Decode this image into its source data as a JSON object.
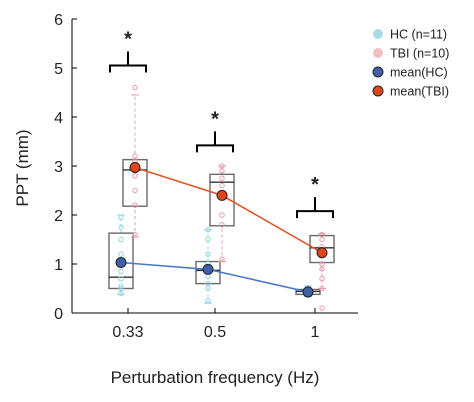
{
  "chart_data": {
    "type": "box",
    "title": "",
    "xlabel": "Perturbation frequency (Hz)",
    "ylabel": "PPT (mm)",
    "ylim": [
      0,
      6
    ],
    "yticks": [
      "0",
      "1",
      "2",
      "3",
      "4",
      "5",
      "6"
    ],
    "categories": [
      "0.33",
      "0.5",
      "1"
    ],
    "legend_position": "top-right",
    "legend": [
      {
        "label": "HC (n=11)",
        "marker": "scatter",
        "color": "#a8dde8"
      },
      {
        "label": "TBI (n=10)",
        "marker": "scatter",
        "color": "#f4c0c0"
      },
      {
        "label": "mean(HC)",
        "marker": "mean",
        "color": "#3f5fa8"
      },
      {
        "label": "mean(TBI)",
        "marker": "mean",
        "color": "#e0451b"
      }
    ],
    "series": [
      {
        "name": "HC",
        "line_color": "#4a7ac8",
        "mean_color": "#3f5fa8",
        "point_color": "#8fd6e4",
        "means": [
          1.03,
          0.89,
          0.43
        ],
        "boxes": [
          {
            "min": 0.38,
            "q1": 0.5,
            "median": 0.73,
            "q3": 1.63,
            "max": 2.0
          },
          {
            "min": 0.2,
            "q1": 0.6,
            "median": 0.87,
            "q3": 1.05,
            "max": 1.7
          },
          {
            "min": 0.33,
            "q1": 0.38,
            "median": 0.44,
            "q3": 0.48,
            "max": 0.55
          }
        ],
        "points": [
          [
            0.4,
            0.5,
            0.55,
            0.7,
            0.85,
            1.0,
            1.2,
            1.5,
            1.75,
            1.95
          ],
          [
            0.25,
            0.5,
            0.6,
            0.75,
            0.85,
            0.95,
            1.0,
            1.2,
            1.5,
            1.7
          ],
          [
            0.36,
            0.4,
            0.42,
            0.44,
            0.46,
            0.48,
            0.5,
            0.52
          ]
        ]
      },
      {
        "name": "TBI",
        "line_color": "#e0552b",
        "mean_color": "#e0451b",
        "point_color": "#e89aaa",
        "means": [
          2.97,
          2.4,
          1.23
        ],
        "boxes": [
          {
            "min": 1.55,
            "q1": 2.18,
            "median": 2.92,
            "q3": 3.13,
            "max": 4.45
          },
          {
            "min": 1.05,
            "q1": 1.78,
            "median": 2.67,
            "q3": 2.83,
            "max": 3.0
          },
          {
            "min": 0.5,
            "q1": 1.03,
            "median": 1.33,
            "q3": 1.58,
            "max": 1.62
          }
        ],
        "points": [
          [
            1.6,
            2.2,
            2.5,
            2.8,
            2.9,
            3.0,
            3.1,
            3.2,
            4.6
          ],
          [
            1.1,
            1.8,
            2.0,
            2.4,
            2.6,
            2.75,
            2.9,
            3.0
          ],
          [
            0.1,
            0.5,
            0.7,
            0.9,
            1.0,
            1.2,
            1.35,
            1.5,
            1.6
          ]
        ]
      }
    ],
    "significance": [
      {
        "category": "0.33",
        "label": "*",
        "y": 5.05
      },
      {
        "category": "0.5",
        "label": "*",
        "y": 3.42
      },
      {
        "category": "1",
        "label": "*",
        "y": 2.08
      }
    ]
  }
}
